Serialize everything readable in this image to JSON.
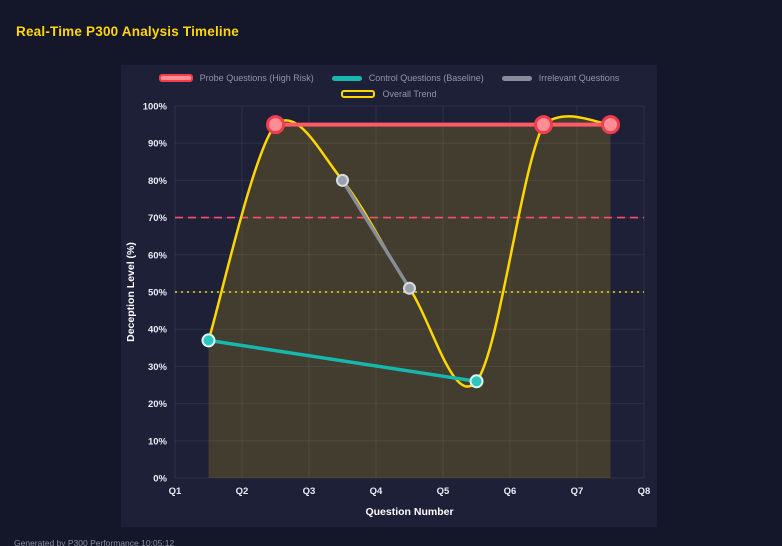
{
  "page": {
    "title": "Real-Time P300 Analysis Timeline",
    "footer": "Generated by P300 Performance  10:05:12"
  },
  "colors": {
    "page_bg": "#14162a",
    "panel_bg": "#1e2037",
    "title": "#ffd60a",
    "grid": "rgba(255,255,255,0.07)",
    "tick_text": "#e9ebf4",
    "axis_title": "#ffffff",
    "legend_text": "#9294a6",
    "footer_text": "#8d8fa0"
  },
  "chart_data": {
    "type": "line",
    "title": "Real-Time P300 Analysis Timeline",
    "xlabel": "Question Number",
    "ylabel": "Deception Level (%)",
    "xlim": [
      1,
      8
    ],
    "ylim": [
      0,
      100
    ],
    "x_tick_values": [
      1,
      2,
      3,
      4,
      5,
      6,
      7,
      8
    ],
    "x_ticks": [
      "Q1",
      "Q2",
      "Q3",
      "Q4",
      "Q5",
      "Q6",
      "Q7",
      "Q8"
    ],
    "y_tick_values": [
      0,
      10,
      20,
      30,
      40,
      50,
      60,
      70,
      80,
      90,
      100
    ],
    "y_ticks": [
      "0%",
      "10%",
      "20%",
      "30%",
      "40%",
      "50%",
      "60%",
      "70%",
      "80%",
      "90%",
      "100%"
    ],
    "grid": true,
    "legend_position": "top",
    "series": [
      {
        "name": "Probe Questions (High Risk)",
        "color": "#ff5a68",
        "line_width": 4,
        "smooth": false,
        "x": [
          2.5,
          6.5,
          7.5
        ],
        "y": [
          95,
          95,
          95
        ],
        "marker": {
          "r": 8,
          "fill": "#ff8d95",
          "stroke": "#f23d4e",
          "stroke_width": 3
        },
        "swatch": {
          "fill": "#ff8d95",
          "border": "#f23d4e"
        }
      },
      {
        "name": "Control Questions (Baseline)",
        "color": "#16b8ae",
        "line_width": 3.5,
        "smooth": false,
        "x": [
          1.5,
          5.5
        ],
        "y": [
          37,
          26
        ],
        "marker": {
          "r": 6,
          "fill": "#2cc6bd",
          "stroke": "#d6f6f3",
          "stroke_width": 2
        },
        "swatch": {
          "fill": "#16b8ae",
          "border": "#16b8ae"
        }
      },
      {
        "name": "Irrelevant Questions",
        "color": "#868d99",
        "line_width": 3.5,
        "smooth": false,
        "x": [
          3.5,
          4.5
        ],
        "y": [
          80,
          51
        ],
        "marker": {
          "r": 5.5,
          "fill": "#9aa1ac",
          "stroke": "#d9dce1",
          "stroke_width": 2
        },
        "swatch": {
          "fill": "#868d99",
          "border": "#868d99"
        }
      },
      {
        "name": "Overall Trend",
        "color": "#ffd700",
        "line_width": 2.5,
        "smooth": true,
        "x": [
          1.5,
          2.5,
          3.5,
          4.5,
          5.5,
          6.5,
          7.5
        ],
        "y": [
          37,
          95,
          80,
          51,
          26,
          95,
          95
        ],
        "marker": null,
        "swatch": {
          "fill": "transparent",
          "border": "#ffd700"
        }
      }
    ],
    "area_fills": [
      {
        "series": "Overall Trend",
        "color": "rgba(255,215,0,0.16)"
      },
      {
        "series": "Probe Questions (High Risk)",
        "color": "rgba(255,215,0,0.16)"
      }
    ],
    "thresholds": [
      {
        "value": 70,
        "color": "#ff4d6d",
        "style": "dashed"
      },
      {
        "value": 50,
        "color": "#ffd700",
        "style": "dotted"
      }
    ]
  }
}
